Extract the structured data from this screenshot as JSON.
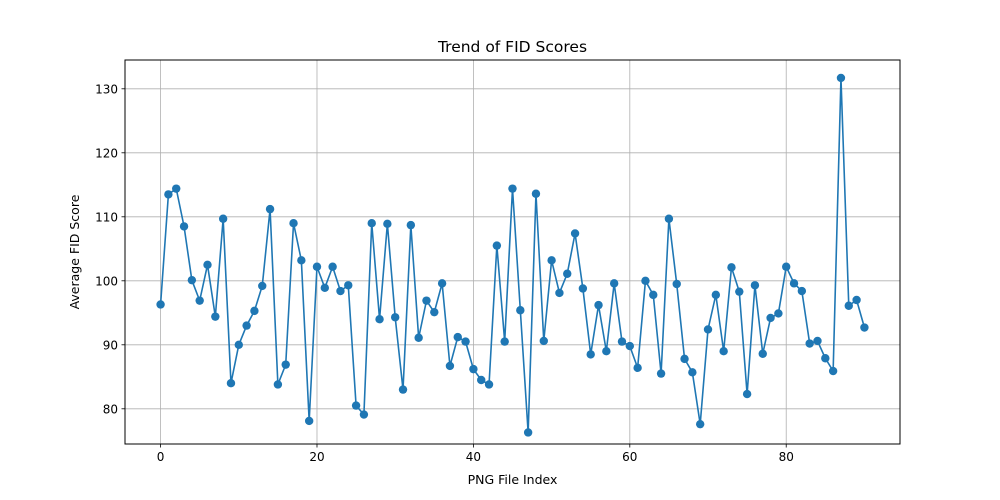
{
  "chart_data": {
    "type": "line",
    "title": "Trend of FID Scores",
    "xlabel": "PNG File Index",
    "ylabel": "Average FID Score",
    "xlim": [
      -4.55,
      94.55
    ],
    "ylim": [
      74.5,
      134.5
    ],
    "xticks": [
      0,
      20,
      40,
      60,
      80
    ],
    "yticks": [
      80,
      90,
      100,
      110,
      120,
      130
    ],
    "grid": true,
    "colors": {
      "line": "#1f77b4",
      "grid": "#b0b0b0"
    },
    "series": [
      {
        "marker": "circle",
        "x": [
          0,
          1,
          2,
          3,
          4,
          5,
          6,
          7,
          8,
          9,
          10,
          11,
          12,
          13,
          14,
          15,
          16,
          17,
          18,
          19,
          20,
          21,
          22,
          23,
          24,
          25,
          26,
          27,
          28,
          29,
          30,
          31,
          32,
          33,
          34,
          35,
          36,
          37,
          38,
          39,
          40,
          41,
          42,
          43,
          44,
          45,
          46,
          47,
          48,
          49,
          50,
          51,
          52,
          53,
          54,
          55,
          56,
          57,
          58,
          59,
          60,
          61,
          62,
          63,
          64,
          65,
          66,
          67,
          68,
          69,
          70,
          71,
          72,
          73,
          74,
          75,
          76,
          77,
          78,
          79,
          80,
          81,
          82,
          83,
          84,
          85,
          86,
          87,
          88,
          89,
          90
        ],
        "y": [
          96.3,
          113.5,
          114.4,
          108.5,
          100.1,
          96.9,
          102.5,
          94.4,
          109.7,
          84.0,
          90.0,
          93.0,
          95.3,
          99.2,
          111.2,
          83.8,
          86.9,
          109.0,
          103.2,
          78.1,
          102.2,
          98.9,
          102.2,
          98.4,
          99.3,
          80.5,
          79.1,
          109.0,
          94.0,
          108.9,
          94.3,
          83.0,
          108.7,
          91.1,
          96.9,
          95.1,
          99.6,
          86.7,
          91.2,
          90.5,
          86.2,
          84.5,
          83.8,
          105.5,
          90.5,
          114.4,
          95.4,
          76.3,
          113.6,
          90.6,
          103.2,
          98.1,
          101.1,
          107.4,
          98.8,
          88.5,
          96.2,
          89.0,
          99.6,
          90.5,
          89.8,
          86.4,
          100.0,
          97.8,
          85.5,
          109.7,
          99.5,
          87.8,
          85.7,
          77.6,
          92.4,
          97.8,
          89.0,
          102.1,
          98.3,
          82.3,
          99.3,
          88.6,
          94.2,
          94.9,
          102.2,
          99.6,
          98.4,
          90.2,
          90.6,
          87.9,
          85.9,
          131.7,
          96.1,
          97.0,
          92.7
        ]
      }
    ]
  }
}
